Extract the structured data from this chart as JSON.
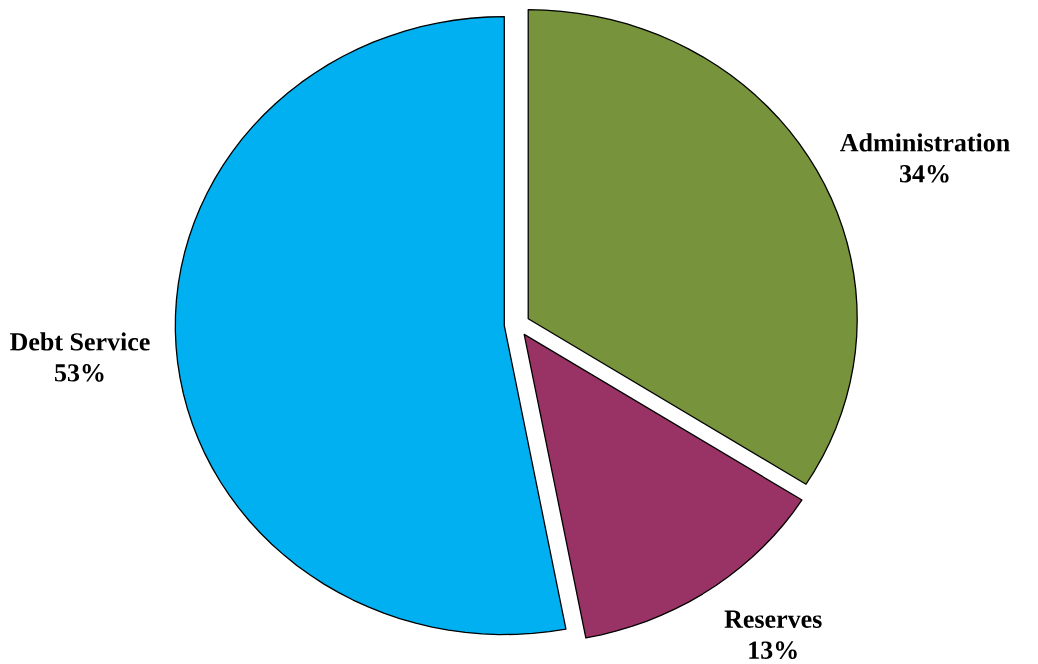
{
  "chart_data": {
    "type": "pie",
    "categories": [
      "Administration",
      "Reserves",
      "Debt Service"
    ],
    "values": [
      34,
      13,
      53
    ],
    "colors": [
      "#77933c",
      "#993366",
      "#00b0f0"
    ],
    "value_labels": [
      "34%",
      "13%",
      "53%"
    ]
  }
}
